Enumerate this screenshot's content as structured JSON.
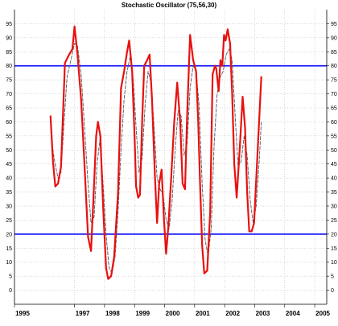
{
  "chart_data": {
    "type": "line",
    "title": "Stochastic Oscillator (75,56,30)",
    "y_ticks": [
      0,
      5,
      10,
      15,
      20,
      25,
      30,
      35,
      40,
      45,
      50,
      55,
      60,
      65,
      70,
      75,
      80,
      85,
      90,
      95
    ],
    "x_tick_labels": [
      {
        "label": "1995",
        "x": 1995.0
      },
      {
        "label": "1997",
        "x": 1997.0
      },
      {
        "label": "1998",
        "x": 1998.0
      },
      {
        "label": "1999",
        "x": 1999.0
      },
      {
        "label": "2000",
        "x": 2000.0
      },
      {
        "label": "2001",
        "x": 2001.0
      },
      {
        "label": "2002",
        "x": 2002.0
      },
      {
        "label": "2003",
        "x": 2003.0
      },
      {
        "label": "2004",
        "x": 2004.0
      },
      {
        "label": "2005",
        "x": 2005.0
      }
    ],
    "xlim": [
      1995.0,
      2005.4
    ],
    "ylim": [
      -5,
      100
    ],
    "grid": true,
    "reference_lines": [
      {
        "value": 80,
        "color": "#1a1aff"
      },
      {
        "value": 20,
        "color": "#1a1aff"
      }
    ],
    "series": [
      {
        "style": "solid",
        "color": "#e81010",
        "points": [
          [
            1996.2,
            62
          ],
          [
            1996.28,
            46
          ],
          [
            1996.36,
            37
          ],
          [
            1996.45,
            38
          ],
          [
            1996.55,
            44
          ],
          [
            1996.68,
            81
          ],
          [
            1996.82,
            84
          ],
          [
            1996.93,
            86
          ],
          [
            1997.0,
            94
          ],
          [
            1997.1,
            84
          ],
          [
            1997.22,
            68
          ],
          [
            1997.32,
            47
          ],
          [
            1997.45,
            19
          ],
          [
            1997.55,
            14
          ],
          [
            1997.62,
            30
          ],
          [
            1997.72,
            55
          ],
          [
            1997.78,
            60
          ],
          [
            1997.86,
            55
          ],
          [
            1997.95,
            30
          ],
          [
            1998.05,
            8
          ],
          [
            1998.12,
            4
          ],
          [
            1998.22,
            5
          ],
          [
            1998.32,
            12
          ],
          [
            1998.45,
            35
          ],
          [
            1998.55,
            72
          ],
          [
            1998.65,
            78
          ],
          [
            1998.75,
            85
          ],
          [
            1998.82,
            89
          ],
          [
            1998.92,
            78
          ],
          [
            1999.0,
            55
          ],
          [
            1999.05,
            37
          ],
          [
            1999.12,
            33
          ],
          [
            1999.18,
            34
          ],
          [
            1999.25,
            60
          ],
          [
            1999.32,
            80
          ],
          [
            1999.42,
            82
          ],
          [
            1999.5,
            84
          ],
          [
            1999.58,
            68
          ],
          [
            1999.68,
            40
          ],
          [
            1999.75,
            24
          ],
          [
            1999.82,
            38
          ],
          [
            1999.9,
            43
          ],
          [
            1999.98,
            25
          ],
          [
            2000.05,
            13
          ],
          [
            2000.12,
            22
          ],
          [
            2000.22,
            40
          ],
          [
            2000.32,
            60
          ],
          [
            2000.42,
            74
          ],
          [
            2000.52,
            60
          ],
          [
            2000.6,
            38
          ],
          [
            2000.68,
            36
          ],
          [
            2000.75,
            62
          ],
          [
            2000.85,
            91
          ],
          [
            2000.95,
            82
          ],
          [
            2001.05,
            78
          ],
          [
            2001.12,
            60
          ],
          [
            2001.18,
            38
          ],
          [
            2001.25,
            16
          ],
          [
            2001.32,
            6
          ],
          [
            2001.42,
            7
          ],
          [
            2001.52,
            28
          ],
          [
            2001.6,
            77
          ],
          [
            2001.68,
            80
          ],
          [
            2001.72,
            79
          ],
          [
            2001.8,
            71
          ],
          [
            2001.86,
            82
          ],
          [
            2001.92,
            80
          ],
          [
            2001.98,
            91
          ],
          [
            2002.03,
            89
          ],
          [
            2002.1,
            93
          ],
          [
            2002.18,
            88
          ],
          [
            2002.25,
            70
          ],
          [
            2002.32,
            45
          ],
          [
            2002.4,
            33
          ],
          [
            2002.5,
            50
          ],
          [
            2002.6,
            69
          ],
          [
            2002.68,
            58
          ],
          [
            2002.75,
            35
          ],
          [
            2002.82,
            21
          ],
          [
            2002.9,
            21
          ],
          [
            2002.98,
            24
          ],
          [
            2003.1,
            50
          ],
          [
            2003.22,
            76
          ]
        ]
      },
      {
        "style": "dashed",
        "color": "#555555",
        "points": [
          [
            1996.25,
            52
          ],
          [
            1996.35,
            45
          ],
          [
            1996.45,
            40
          ],
          [
            1996.55,
            42
          ],
          [
            1996.65,
            60
          ],
          [
            1996.75,
            76
          ],
          [
            1996.88,
            82
          ],
          [
            1997.0,
            88
          ],
          [
            1997.1,
            87
          ],
          [
            1997.22,
            77
          ],
          [
            1997.32,
            60
          ],
          [
            1997.45,
            38
          ],
          [
            1997.55,
            24
          ],
          [
            1997.65,
            26
          ],
          [
            1997.75,
            45
          ],
          [
            1997.85,
            54
          ],
          [
            1997.95,
            38
          ],
          [
            1998.05,
            20
          ],
          [
            1998.15,
            8
          ],
          [
            1998.25,
            6
          ],
          [
            1998.35,
            12
          ],
          [
            1998.45,
            28
          ],
          [
            1998.55,
            50
          ],
          [
            1998.65,
            68
          ],
          [
            1998.75,
            78
          ],
          [
            1998.85,
            83
          ],
          [
            1998.95,
            76
          ],
          [
            1999.05,
            58
          ],
          [
            1999.15,
            42
          ],
          [
            1999.25,
            47
          ],
          [
            1999.35,
            66
          ],
          [
            1999.45,
            78
          ],
          [
            1999.55,
            74
          ],
          [
            1999.65,
            58
          ],
          [
            1999.75,
            40
          ],
          [
            1999.85,
            36
          ],
          [
            1999.95,
            34
          ],
          [
            2000.05,
            25
          ],
          [
            2000.15,
            22
          ],
          [
            2000.25,
            32
          ],
          [
            2000.35,
            50
          ],
          [
            2000.45,
            64
          ],
          [
            2000.55,
            62
          ],
          [
            2000.65,
            48
          ],
          [
            2000.75,
            52
          ],
          [
            2000.85,
            72
          ],
          [
            2000.95,
            80
          ],
          [
            2001.05,
            78
          ],
          [
            2001.15,
            66
          ],
          [
            2001.25,
            38
          ],
          [
            2001.35,
            18
          ],
          [
            2001.45,
            12
          ],
          [
            2001.55,
            22
          ],
          [
            2001.65,
            52
          ],
          [
            2001.75,
            70
          ],
          [
            2001.85,
            76
          ],
          [
            2001.95,
            78
          ],
          [
            2002.05,
            84
          ],
          [
            2002.15,
            86
          ],
          [
            2002.25,
            82
          ],
          [
            2002.35,
            62
          ],
          [
            2002.45,
            44
          ],
          [
            2002.55,
            46
          ],
          [
            2002.65,
            55
          ],
          [
            2002.75,
            48
          ],
          [
            2002.85,
            32
          ],
          [
            2002.95,
            24
          ],
          [
            2003.05,
            30
          ],
          [
            2003.15,
            46
          ],
          [
            2003.22,
            60
          ]
        ]
      }
    ]
  }
}
